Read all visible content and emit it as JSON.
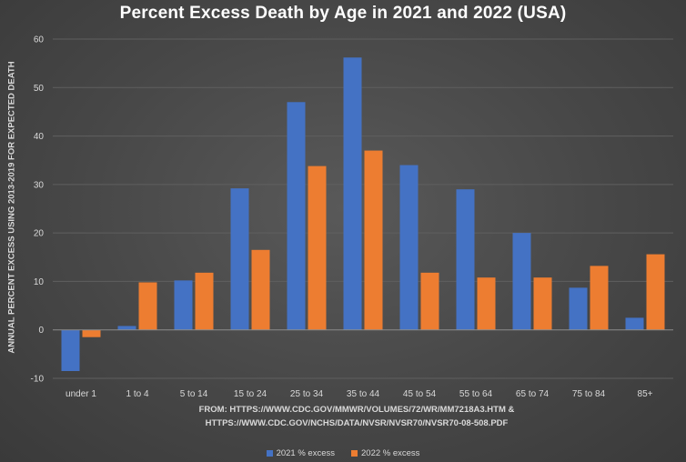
{
  "chart_data": {
    "type": "bar",
    "title": "Percent Excess Death by Age in 2021 and 2022 (USA)",
    "ylabel": "ANNUAL PERCENT EXCESS USING 2013-2019 FOR EXPECTED DEATH",
    "xlabel": "",
    "categories": [
      "under 1",
      "1 to 4",
      "5 to 14",
      "15 to 24",
      "25 to 34",
      "35 to 44",
      "45 to 54",
      "55 to 64",
      "65 to 74",
      "75 to 84",
      "85+"
    ],
    "series": [
      {
        "name": "2021 % excess",
        "color": "#4472c4",
        "values": [
          -8.5,
          0.8,
          10.2,
          29.2,
          47.0,
          56.2,
          34.0,
          29.0,
          20.0,
          8.7,
          2.5
        ]
      },
      {
        "name": "2022 % excess",
        "color": "#ed7d31",
        "values": [
          -1.5,
          9.8,
          11.8,
          16.5,
          33.8,
          37.0,
          11.8,
          10.8,
          10.8,
          13.2,
          15.6
        ]
      }
    ],
    "ylim": [
      -10,
      60
    ],
    "yticks": [
      -10,
      0,
      10,
      20,
      30,
      40,
      50,
      60
    ],
    "grid": true,
    "legend_position": "bottom"
  },
  "source_line_1": "FROM: HTTPS://WWW.CDC.GOV/MMWR/VOLUMES/72/WR/MM7218A3.HTM &",
  "source_line_2": "HTTPS://WWW.CDC.GOV/NCHS/DATA/NVSR/NVSR70/NVSR70-08-508.PDF"
}
